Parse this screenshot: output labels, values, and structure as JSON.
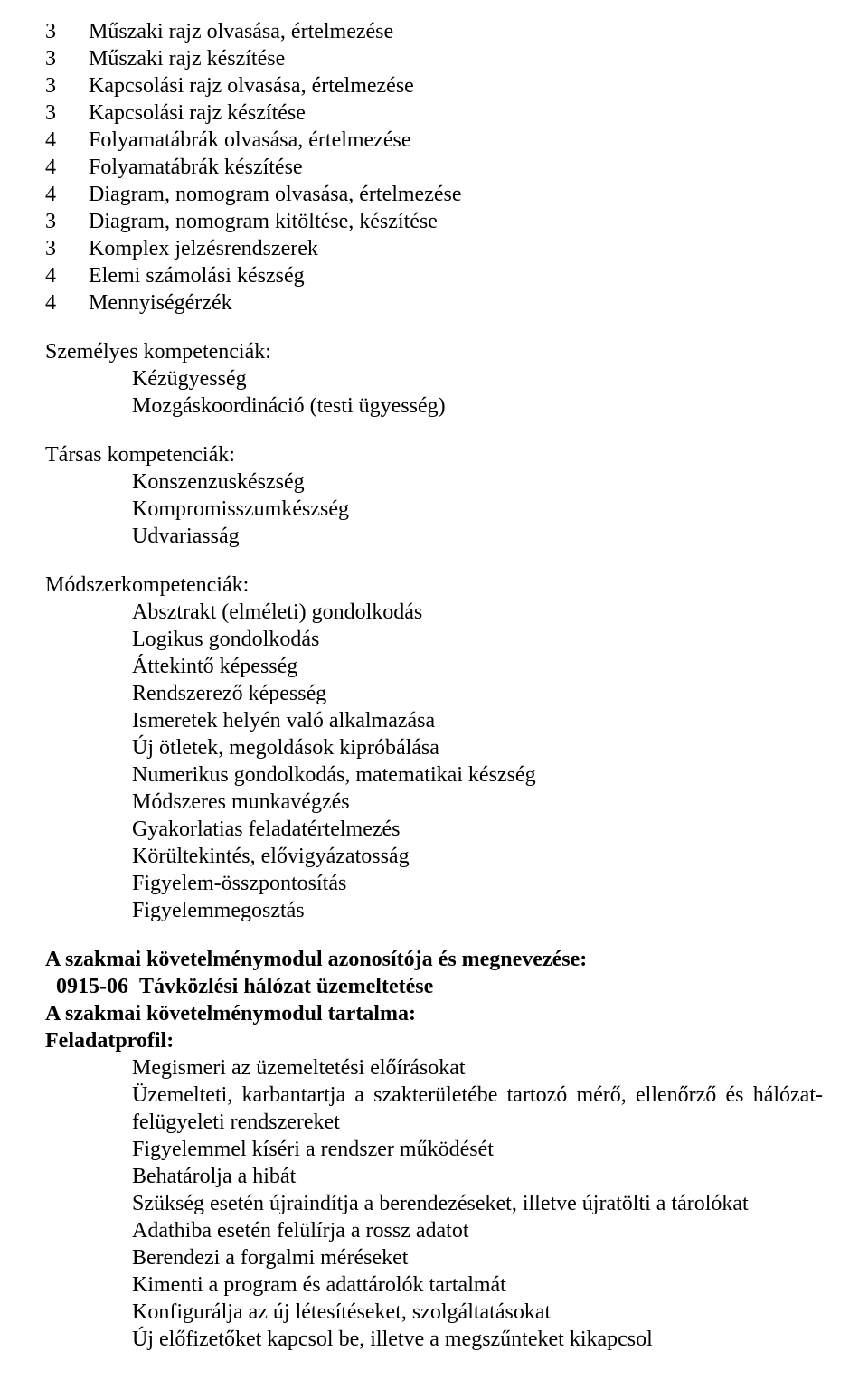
{
  "numbered": [
    {
      "n": "3",
      "t": "Műszaki rajz olvasása, értelmezése"
    },
    {
      "n": "3",
      "t": "Műszaki rajz készítése"
    },
    {
      "n": "3",
      "t": "Kapcsolási rajz olvasása, értelmezése"
    },
    {
      "n": "3",
      "t": "Kapcsolási rajz készítése"
    },
    {
      "n": "4",
      "t": "Folyamatábrák olvasása, értelmezése"
    },
    {
      "n": "4",
      "t": "Folyamatábrák készítése"
    },
    {
      "n": "4",
      "t": "Diagram, nomogram olvasása, értelmezése"
    },
    {
      "n": "3",
      "t": "Diagram, nomogram kitöltése, készítése"
    },
    {
      "n": "3",
      "t": "Komplex jelzésrendszerek"
    },
    {
      "n": "4",
      "t": "Elemi számolási készség"
    },
    {
      "n": "4",
      "t": "Mennyiségérzék"
    }
  ],
  "groups": [
    {
      "title": "Személyes kompetenciák:",
      "items": [
        "Kézügyesség",
        "Mozgáskoordináció (testi ügyesség)"
      ]
    },
    {
      "title": "Társas kompetenciák:",
      "items": [
        "Konszenzuskészség",
        "Kompromisszumkészség",
        "Udvariasság"
      ]
    },
    {
      "title": "Módszerkompetenciák:",
      "items": [
        "Absztrakt (elméleti) gondolkodás",
        "Logikus gondolkodás",
        "Áttekintő képesség",
        "Rendszerező képesség",
        "Ismeretek helyén való alkalmazása",
        "Új ötletek, megoldások kipróbálása",
        "Numerikus gondolkodás, matematikai készség",
        "Módszeres munkavégzés",
        "Gyakorlatias feladatértelmezés",
        "Körültekintés, elővigyázatosság",
        "Figyelem-összpontosítás",
        "Figyelemmegosztás"
      ]
    }
  ],
  "module": {
    "line1": "A szakmai követelménymodul azonosítója és megnevezése:",
    "id": "0915-06",
    "name": "Távközlési hálózat üzemeltetése",
    "line3": "A szakmai követelménymodul tartalma:",
    "line4": "Feladatprofil:",
    "items": [
      "Megismeri az üzemeltetési előírásokat",
      "Üzemelteti, karbantartja a szakterületébe tartozó mérő, ellenőrző és hálózat-felügyeleti rendszereket",
      "Figyelemmel kíséri a rendszer működését",
      "Behatárolja a hibát",
      "Szükség esetén újraindítja a berendezéseket, illetve újratölti a tárolókat",
      "Adathiba esetén felülírja a rossz adatot",
      "Berendezi a forgalmi méréseket",
      "Kimenti a program és adattárolók tartalmát",
      "Konfigurálja az új létesítéseket, szolgáltatásokat",
      "Új előfizetőket kapcsol be, illetve a megszűnteket kikapcsol"
    ]
  }
}
